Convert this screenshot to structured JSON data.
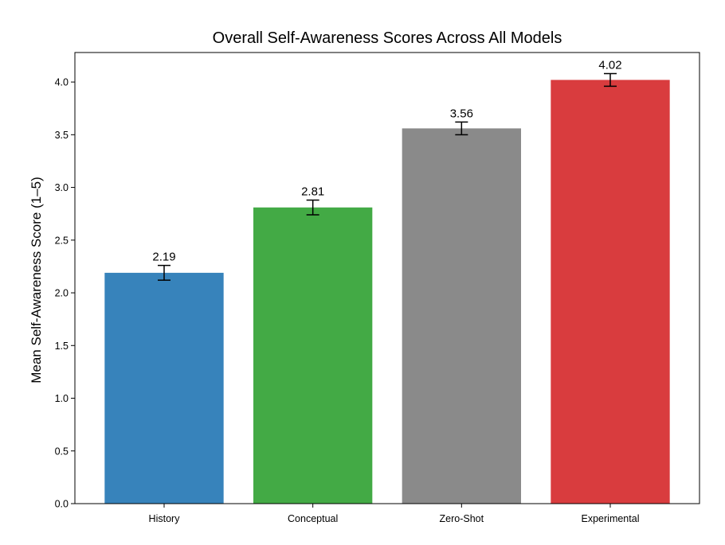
{
  "chart_data": {
    "type": "bar",
    "title": "Overall Self-Awareness Scores Across All Models",
    "xlabel": "",
    "ylabel": "Mean Self-Awareness Score (1–5)",
    "categories": [
      "History",
      "Conceptual",
      "Zero-Shot",
      "Experimental"
    ],
    "values": [
      2.19,
      2.81,
      3.56,
      4.02
    ],
    "value_labels": [
      "2.19",
      "2.81",
      "3.56",
      "4.02"
    ],
    "error": [
      0.07,
      0.07,
      0.06,
      0.06
    ],
    "colors": [
      "#3783bb",
      "#43aa45",
      "#8a8a8a",
      "#d93c3e"
    ],
    "ylim": [
      0,
      4.28
    ],
    "yticks": [
      0.0,
      0.5,
      1.0,
      1.5,
      2.0,
      2.5,
      3.0,
      3.5,
      4.0
    ],
    "ytick_labels": [
      "0.0",
      "0.5",
      "1.0",
      "1.5",
      "2.0",
      "2.5",
      "3.0",
      "3.5",
      "4.0"
    ],
    "grid": false,
    "legend": "none"
  }
}
